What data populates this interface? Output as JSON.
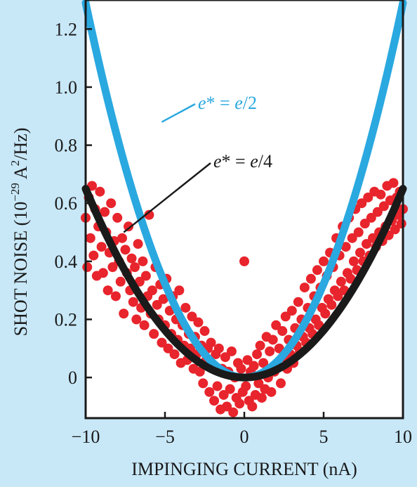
{
  "colors": {
    "background": "#c8e8f8",
    "plot_background": "#ffffff",
    "data_points": "#e8242c",
    "fit_e_over_2": "#2aa8e0",
    "fit_e_over_4": "#1a1a1a"
  },
  "chart_data": {
    "type": "scatter",
    "title": "",
    "xlabel": "IMPINGING CURRENT (nA)",
    "ylabel_prefix": "SHOT NOISE (10",
    "ylabel_exp1": "−29",
    "ylabel_mid": " A",
    "ylabel_exp2": "2",
    "ylabel_suffix": "/Hz)",
    "xlim": [
      -10,
      10
    ],
    "ylim": [
      -0.14,
      1.3
    ],
    "xticks": [
      -10,
      -5,
      0,
      5,
      10
    ],
    "xtick_labels": [
      "−10",
      "−5",
      "0",
      "5",
      "10"
    ],
    "yticks": [
      0,
      0.2,
      0.4,
      0.6,
      0.8,
      1.0,
      1.2
    ],
    "ytick_labels": [
      "0",
      "0.2",
      "0.4",
      "0.6",
      "0.8",
      "1.0",
      "1.2"
    ],
    "grid": false,
    "series": [
      {
        "kind": "scatter",
        "points": [
          [
            -10.0,
            0.55
          ],
          [
            -9.9,
            0.38
          ],
          [
            -9.8,
            0.62
          ],
          [
            -9.7,
            0.48
          ],
          [
            -9.6,
            0.66
          ],
          [
            -9.5,
            0.42
          ],
          [
            -9.4,
            0.58
          ],
          [
            -9.3,
            0.35
          ],
          [
            -9.2,
            0.52
          ],
          [
            -9.1,
            0.64
          ],
          [
            -9.0,
            0.45
          ],
          [
            -8.9,
            0.36
          ],
          [
            -8.8,
            0.57
          ],
          [
            -8.7,
            0.5
          ],
          [
            -8.6,
            0.3
          ],
          [
            -8.5,
            0.43
          ],
          [
            -8.4,
            0.6
          ],
          [
            -8.3,
            0.38
          ],
          [
            -8.2,
            0.47
          ],
          [
            -8.1,
            0.28
          ],
          [
            -8.0,
            0.55
          ],
          [
            -7.9,
            0.4
          ],
          [
            -7.8,
            0.33
          ],
          [
            -7.7,
            0.48
          ],
          [
            -7.6,
            0.22
          ],
          [
            -7.5,
            0.44
          ],
          [
            -7.4,
            0.36
          ],
          [
            -7.3,
            0.52
          ],
          [
            -7.2,
            0.3
          ],
          [
            -7.1,
            0.41
          ],
          [
            -7.0,
            0.26
          ],
          [
            -6.9,
            0.38
          ],
          [
            -6.8,
            0.2
          ],
          [
            -6.7,
            0.46
          ],
          [
            -6.6,
            0.33
          ],
          [
            -6.5,
            0.24
          ],
          [
            -6.4,
            0.4
          ],
          [
            -6.3,
            0.18
          ],
          [
            -6.2,
            0.35
          ],
          [
            -6.1,
            0.28
          ],
          [
            -6.0,
            0.56
          ],
          [
            -5.9,
            0.22
          ],
          [
            -5.8,
            0.3
          ],
          [
            -5.7,
            0.15
          ],
          [
            -5.6,
            0.38
          ],
          [
            -5.5,
            0.25
          ],
          [
            -5.4,
            0.2
          ],
          [
            -5.3,
            0.32
          ],
          [
            -5.2,
            0.12
          ],
          [
            -5.1,
            0.27
          ],
          [
            -5.0,
            0.18
          ],
          [
            -4.9,
            0.34
          ],
          [
            -4.8,
            0.1
          ],
          [
            -4.7,
            0.23
          ],
          [
            -4.6,
            0.15
          ],
          [
            -4.5,
            0.28
          ],
          [
            -4.4,
            0.08
          ],
          [
            -4.3,
            0.2
          ],
          [
            -4.2,
            0.13
          ],
          [
            -4.1,
            0.3
          ],
          [
            -4.0,
            0.05
          ],
          [
            -3.9,
            0.18
          ],
          [
            -3.8,
            0.11
          ],
          [
            -3.7,
            0.24
          ],
          [
            -3.6,
            0.06
          ],
          [
            -3.5,
            0.15
          ],
          [
            -3.4,
            0.1
          ],
          [
            -3.3,
            0.21
          ],
          [
            -3.2,
            0.03
          ],
          [
            -3.1,
            0.14
          ],
          [
            -3.0,
            0.08
          ],
          [
            -2.9,
            0.19
          ],
          [
            -2.8,
            0.02
          ],
          [
            -2.7,
            0.11
          ],
          [
            -2.6,
            -0.02
          ],
          [
            -2.5,
            0.16
          ],
          [
            -2.4,
            0.06
          ],
          [
            -2.3,
            0.1
          ],
          [
            -2.2,
            -0.05
          ],
          [
            -2.1,
            0.12
          ],
          [
            -2.0,
            0.04
          ],
          [
            -1.9,
            -0.08
          ],
          [
            -1.8,
            0.08
          ],
          [
            -1.7,
            -0.03
          ],
          [
            -1.6,
            0.1
          ],
          [
            -1.5,
            -0.11
          ],
          [
            -1.4,
            0.03
          ],
          [
            -1.3,
            -0.06
          ],
          [
            -1.2,
            0.07
          ],
          [
            -1.1,
            -0.1
          ],
          [
            -1.0,
            0.02
          ],
          [
            -0.9,
            -0.04
          ],
          [
            -0.8,
            0.09
          ],
          [
            -0.7,
            -0.12
          ],
          [
            -0.6,
            0.0
          ],
          [
            -0.5,
            -0.07
          ],
          [
            -0.4,
            0.05
          ],
          [
            -0.3,
            -0.09
          ],
          [
            -0.2,
            0.03
          ],
          [
            -0.1,
            -0.05
          ],
          [
            0.0,
            0.4
          ],
          [
            0.1,
            -0.03
          ],
          [
            0.2,
            0.06
          ],
          [
            0.3,
            -0.08
          ],
          [
            0.4,
            0.02
          ],
          [
            0.5,
            -0.1
          ],
          [
            0.6,
            0.04
          ],
          [
            0.7,
            -0.06
          ],
          [
            0.8,
            0.08
          ],
          [
            0.9,
            -0.02
          ],
          [
            1.0,
            0.11
          ],
          [
            1.1,
            -0.07
          ],
          [
            1.2,
            0.05
          ],
          [
            1.3,
            -0.04
          ],
          [
            1.4,
            0.14
          ],
          [
            1.5,
            0.0
          ],
          [
            1.6,
            0.09
          ],
          [
            1.7,
            -0.05
          ],
          [
            1.8,
            0.13
          ],
          [
            1.9,
            0.02
          ],
          [
            2.0,
            0.18
          ],
          [
            2.1,
            0.04
          ],
          [
            2.2,
            0.1
          ],
          [
            2.3,
            -0.02
          ],
          [
            2.4,
            0.16
          ],
          [
            2.5,
            0.07
          ],
          [
            2.6,
            0.21
          ],
          [
            2.7,
            0.03
          ],
          [
            2.8,
            0.13
          ],
          [
            2.9,
            0.08
          ],
          [
            3.0,
            0.23
          ],
          [
            3.1,
            0.05
          ],
          [
            3.2,
            0.17
          ],
          [
            3.3,
            0.11
          ],
          [
            3.4,
            0.26
          ],
          [
            3.5,
            0.09
          ],
          [
            3.6,
            0.2
          ],
          [
            3.7,
            0.14
          ],
          [
            3.8,
            0.31
          ],
          [
            3.9,
            0.12
          ],
          [
            4.0,
            0.24
          ],
          [
            4.1,
            0.17
          ],
          [
            4.2,
            0.34
          ],
          [
            4.3,
            0.15
          ],
          [
            4.4,
            0.28
          ],
          [
            4.5,
            0.2
          ],
          [
            4.6,
            0.37
          ],
          [
            4.7,
            0.18
          ],
          [
            4.8,
            0.31
          ],
          [
            4.9,
            0.24
          ],
          [
            5.0,
            0.4
          ],
          [
            5.1,
            0.22
          ],
          [
            5.2,
            0.35
          ],
          [
            5.3,
            0.27
          ],
          [
            5.4,
            0.43
          ],
          [
            5.5,
            0.25
          ],
          [
            5.6,
            0.38
          ],
          [
            5.7,
            0.3
          ],
          [
            5.8,
            0.48
          ],
          [
            5.9,
            0.28
          ],
          [
            6.0,
            0.42
          ],
          [
            6.1,
            0.33
          ],
          [
            6.2,
            0.52
          ],
          [
            6.3,
            0.3
          ],
          [
            6.4,
            0.45
          ],
          [
            6.5,
            0.36
          ],
          [
            6.6,
            0.55
          ],
          [
            6.7,
            0.34
          ],
          [
            6.8,
            0.48
          ],
          [
            6.9,
            0.4
          ],
          [
            7.0,
            0.58
          ],
          [
            7.1,
            0.37
          ],
          [
            7.2,
            0.5
          ],
          [
            7.3,
            0.43
          ],
          [
            7.4,
            0.6
          ],
          [
            7.5,
            0.4
          ],
          [
            7.6,
            0.53
          ],
          [
            7.7,
            0.46
          ],
          [
            7.8,
            0.62
          ],
          [
            7.9,
            0.42
          ],
          [
            8.0,
            0.55
          ],
          [
            8.1,
            0.48
          ],
          [
            8.2,
            0.64
          ],
          [
            8.3,
            0.45
          ],
          [
            8.4,
            0.57
          ],
          [
            8.5,
            0.5
          ],
          [
            8.6,
            0.63
          ],
          [
            8.7,
            0.47
          ],
          [
            8.8,
            0.59
          ],
          [
            8.9,
            0.52
          ],
          [
            9.0,
            0.66
          ],
          [
            9.1,
            0.49
          ],
          [
            9.2,
            0.61
          ],
          [
            9.3,
            0.54
          ],
          [
            9.4,
            0.67
          ],
          [
            9.5,
            0.51
          ],
          [
            9.6,
            0.62
          ],
          [
            9.7,
            0.56
          ],
          [
            9.8,
            0.64
          ],
          [
            9.9,
            0.53
          ],
          [
            10.0,
            0.58
          ]
        ]
      },
      {
        "kind": "line",
        "annotation": "e* = e/2",
        "equation": "y = 0.0129 * x^2",
        "x": [
          -10,
          -9,
          -8,
          -7,
          -6,
          -5,
          -4,
          -3,
          -2,
          -1,
          0,
          1,
          2,
          3,
          4,
          5,
          6,
          7,
          8,
          9,
          10
        ],
        "y": [
          1.29,
          1.045,
          0.826,
          0.632,
          0.464,
          0.323,
          0.206,
          0.116,
          0.052,
          0.013,
          0.0,
          0.013,
          0.052,
          0.116,
          0.206,
          0.323,
          0.464,
          0.632,
          0.826,
          1.045,
          1.29
        ]
      },
      {
        "kind": "line",
        "annotation": "e* = e/4",
        "equation": "y = 0.0065 * x^2",
        "x": [
          -10,
          -9,
          -8,
          -7,
          -6,
          -5,
          -4,
          -3,
          -2,
          -1,
          0,
          1,
          2,
          3,
          4,
          5,
          6,
          7,
          8,
          9,
          10
        ],
        "y": [
          0.65,
          0.527,
          0.416,
          0.319,
          0.234,
          0.163,
          0.104,
          0.059,
          0.026,
          0.007,
          0.0,
          0.007,
          0.026,
          0.059,
          0.104,
          0.163,
          0.234,
          0.319,
          0.416,
          0.527,
          0.65
        ]
      }
    ],
    "annotations": [
      {
        "text_prefix": "e",
        "text_star": "*",
        "text_eq": " = ",
        "text_e": "e",
        "text_div": "/2",
        "anchor_x": -5.2,
        "anchor_y": 0.88
      },
      {
        "text_prefix": "e",
        "text_star": "*",
        "text_eq": " = ",
        "text_e": "e",
        "text_div": "/4",
        "anchor_x": -7.6,
        "anchor_y": 0.5
      }
    ]
  }
}
